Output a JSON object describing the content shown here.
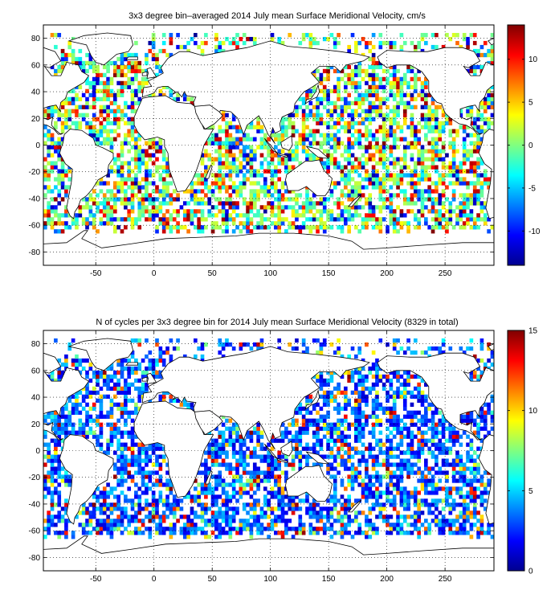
{
  "colormap": [
    "#00008f",
    "#0000ff",
    "#0080ff",
    "#00ffff",
    "#80ff80",
    "#ffff00",
    "#ff8000",
    "#ff0000",
    "#800000"
  ],
  "land_color": "#ffffff",
  "coast_color": "#000000",
  "grid_style": "dotted",
  "chart_data": [
    {
      "type": "heatmap",
      "title": "3x3 degree bin–averaged 2014 July mean Surface Meridional Velocity, cm/s",
      "xlim": [
        -95,
        292
      ],
      "ylim": [
        -90,
        90
      ],
      "xticks": [
        -50,
        0,
        50,
        100,
        150,
        200,
        250
      ],
      "xtick_labels": [
        "-50",
        "0",
        "50",
        "100",
        "150",
        "200",
        "250"
      ],
      "yticks": [
        -80,
        -60,
        -40,
        -20,
        0,
        20,
        40,
        60,
        80
      ],
      "ytick_labels": [
        "-80",
        "-60",
        "-40",
        "-20",
        "0",
        "20",
        "40",
        "60",
        "80"
      ],
      "grid": true,
      "bin_size_deg": 3,
      "colorbar": {
        "clim": [
          -14,
          14
        ],
        "ticks": [
          -10,
          -5,
          0,
          5,
          10
        ],
        "tick_labels": [
          "-10",
          "-5",
          "0",
          "5",
          "10"
        ],
        "placement": "right"
      },
      "value_distribution": "scattered positive and negative values between about -14 and 14 cm/s over ocean bins from about 64S to 84N"
    },
    {
      "type": "heatmap",
      "title": "N of cycles per 3x3 degree bin for 2014 July mean Surface Meridional Velocity (8329 in total)",
      "xlim": [
        -95,
        292
      ],
      "ylim": [
        -90,
        90
      ],
      "xticks": [
        -50,
        0,
        50,
        100,
        150,
        200,
        250
      ],
      "xtick_labels": [
        "-50",
        "0",
        "50",
        "100",
        "150",
        "200",
        "250"
      ],
      "yticks": [
        -80,
        -60,
        -40,
        -20,
        0,
        20,
        40,
        60,
        80
      ],
      "ytick_labels": [
        "-80",
        "-60",
        "-40",
        "-20",
        "0",
        "20",
        "40",
        "60",
        "80"
      ],
      "grid": true,
      "bin_size_deg": 3,
      "total_cycles": 8329,
      "colorbar": {
        "clim": [
          0,
          15
        ],
        "ticks": [
          0,
          5,
          10,
          15
        ],
        "tick_labels": [
          "0",
          "5",
          "10",
          "15"
        ],
        "placement": "right"
      },
      "value_distribution": "mostly 1-6 cycles per bin, higher counts up to about 15 in the Kuroshio, Mediterranean and western boundary regions"
    }
  ]
}
